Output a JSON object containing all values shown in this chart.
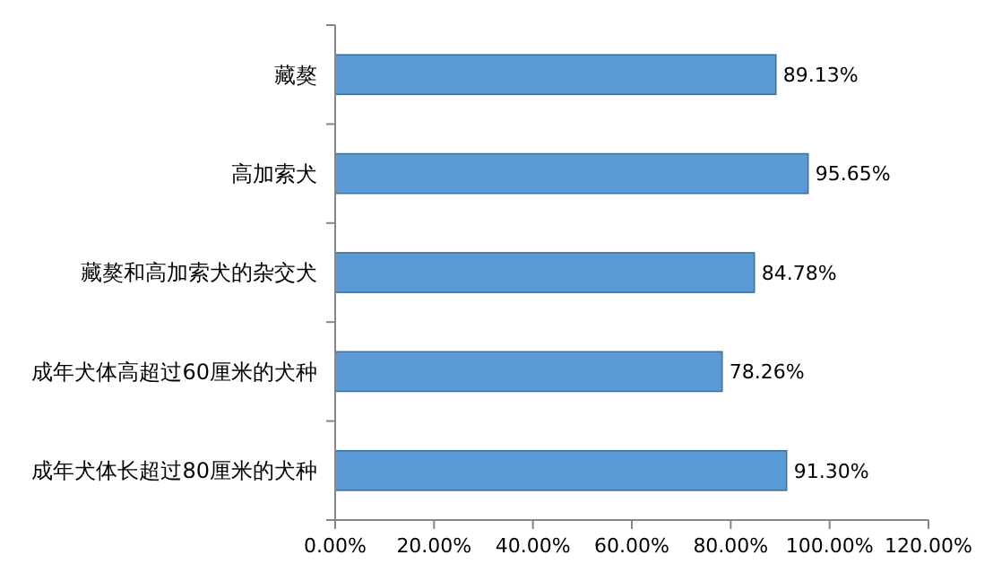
{
  "chart_data": {
    "type": "bar",
    "orientation": "horizontal",
    "categories": [
      "藏獒",
      "高加索犬",
      "藏獒和高加索犬的杂交犬",
      "成年犬体高超过60厘米的犬种",
      "成年犬体长超过80厘米的犬种"
    ],
    "values": [
      89.13,
      95.65,
      84.78,
      78.26,
      91.3
    ],
    "value_labels": [
      "89.13%",
      "95.65%",
      "84.78%",
      "78.26%",
      "91.30%"
    ],
    "color": "#5b9bd5",
    "xlim": [
      0,
      120
    ],
    "xticks": [
      {
        "value": 0,
        "label": "0.00%"
      },
      {
        "value": 20,
        "label": "20.00%"
      },
      {
        "value": 40,
        "label": "40.00%"
      },
      {
        "value": 60,
        "label": "60.00%"
      },
      {
        "value": 80,
        "label": "80.00%"
      },
      {
        "value": 100,
        "label": "100.00%"
      },
      {
        "value": 120,
        "label": "120.00%"
      }
    ],
    "grid": false
  }
}
